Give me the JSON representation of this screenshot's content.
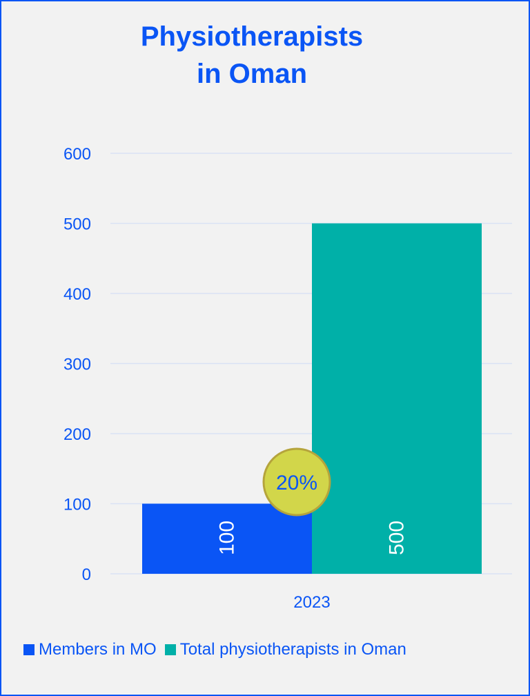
{
  "chart_data": {
    "type": "bar",
    "title_lines": [
      "Physiotherapists",
      "in Oman"
    ],
    "categories": [
      "2023"
    ],
    "series": [
      {
        "name": "Members in MO",
        "values": [
          100
        ],
        "color": "#0a55f5"
      },
      {
        "name": "Total physiotherapists in Oman",
        "values": [
          500
        ],
        "color": "#00b0a8"
      }
    ],
    "y_ticks": [
      "0",
      "100",
      "200",
      "300",
      "400",
      "500",
      "600"
    ],
    "ylim": [
      0,
      600
    ],
    "grid": true,
    "legend_position": "bottom",
    "annotation": {
      "text": "20%",
      "fill": "#d2d64a",
      "border": "#b5a43c"
    }
  }
}
